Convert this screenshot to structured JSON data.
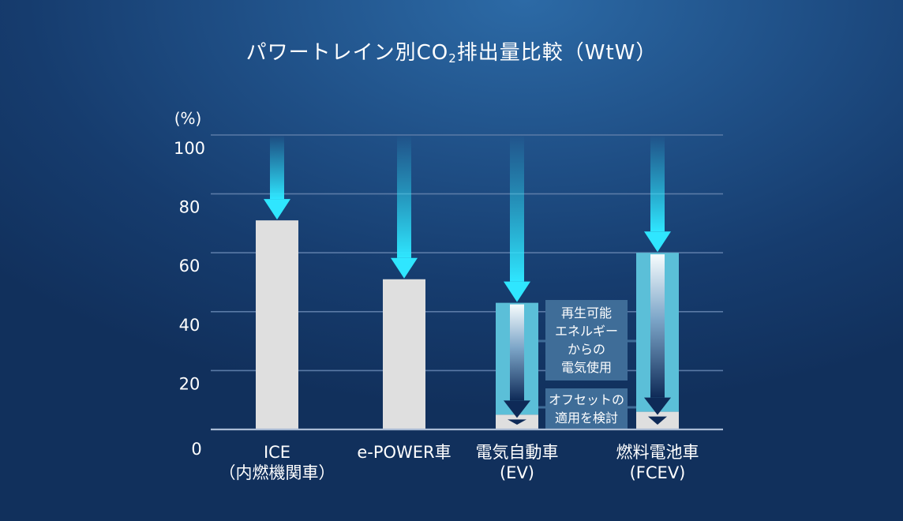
{
  "chart_data": {
    "type": "bar",
    "title_pre": "パワートレイン別CO",
    "title_sub": "2",
    "title_post": "排出量比較（WtW）",
    "yunit": "(%)",
    "ylim": [
      0,
      100
    ],
    "yticks": [
      "0",
      "20",
      "40",
      "60",
      "80",
      "100"
    ],
    "grid": true,
    "categories": [
      {
        "lines": [
          "ICE",
          "（内燃機関車）"
        ]
      },
      {
        "lines": [
          "e-POWER車"
        ]
      },
      {
        "lines": [
          "電気自動車",
          "(EV)"
        ]
      },
      {
        "lines": [
          "燃料電池車",
          "(FCEV)"
        ]
      }
    ],
    "values": [
      71,
      51,
      43,
      60
    ],
    "offset_values": [
      null,
      null,
      5,
      6
    ],
    "annotations": {
      "renewable": [
        "再生可能",
        "エネルギー",
        "からの",
        "電気使用"
      ],
      "offset": [
        "オフセットの",
        "適用を検討"
      ]
    },
    "colors": {
      "bar": "#dfdfdf",
      "offset_bar": "#5bbfd8",
      "arrow": "#2fe6ff",
      "grid": "#5a7aa6",
      "axis": "#a9bbd4",
      "note_box": "#3f6d98"
    }
  }
}
